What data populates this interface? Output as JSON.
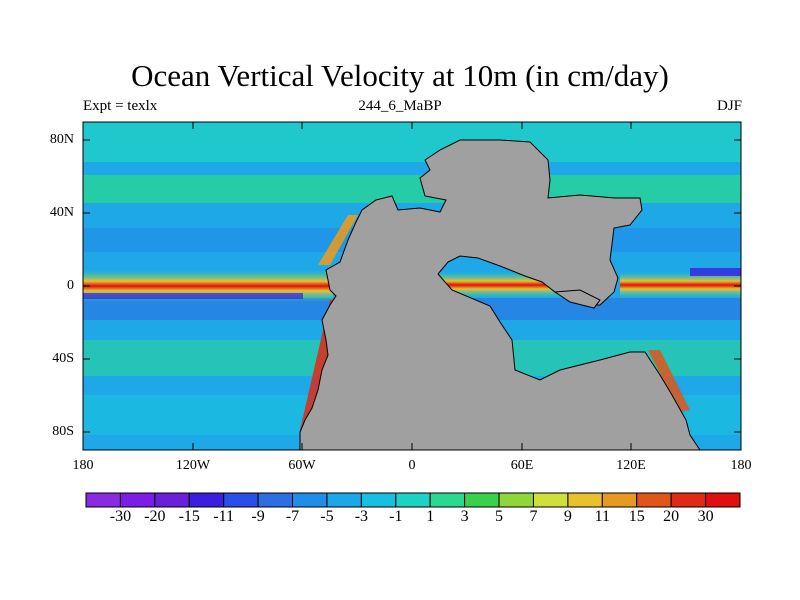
{
  "title": "Ocean Vertical Velocity at 10m (in cm/day)",
  "left_label": "Expt = texlx",
  "center_label": "244_6_MaBP",
  "right_label": "DJF",
  "lat_labels": [
    "80N",
    "40N",
    "0",
    "40S",
    "80S"
  ],
  "lon_labels": [
    "180",
    "120W",
    "60W",
    "0",
    "60E",
    "120E",
    "180"
  ],
  "colorbar": {
    "labels": [
      "-30",
      "-20",
      "-15",
      "-11",
      "-9",
      "-7",
      "-5",
      "-3",
      "-1",
      "1",
      "3",
      "5",
      "7",
      "9",
      "11",
      "15",
      "20",
      "30"
    ],
    "colors": [
      "#8a2be2",
      "#7a1ee6",
      "#6a1fd9",
      "#3b1ee0",
      "#2a4ee8",
      "#2b6fe0",
      "#1f8ee8",
      "#1ca8e8",
      "#19bfe0",
      "#1fd0c4",
      "#2ad890",
      "#3ad14a",
      "#8fd63a",
      "#cfe03a",
      "#e8c030",
      "#e69a22",
      "#e0561a",
      "#e02a14",
      "#e0100e"
    ]
  },
  "map": {
    "land_color": "#a0a0a0",
    "ocean_base_color": "#1fa8e8"
  }
}
